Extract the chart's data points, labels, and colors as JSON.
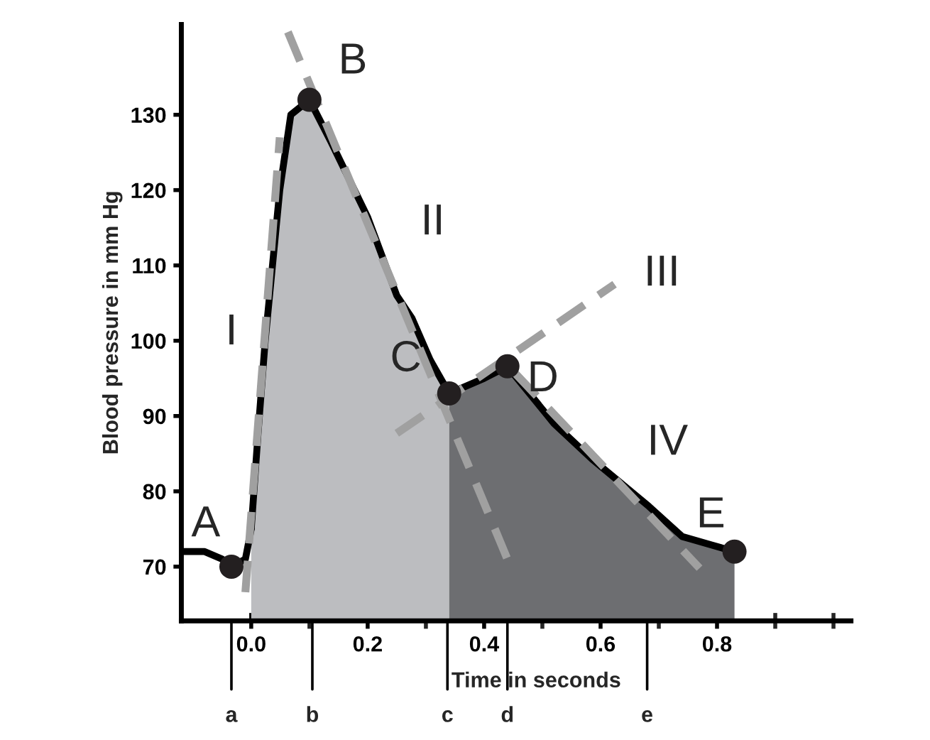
{
  "chart_data": {
    "type": "line",
    "xlabel": "Time in seconds",
    "ylabel": "Blood pressure in mm Hg",
    "xlim": [
      -0.12,
      1.03
    ],
    "ylim": [
      62.8,
      142
    ],
    "xticks": [
      {
        "value": 0.0,
        "label": "0.0"
      },
      {
        "value": 0.1,
        "label": null
      },
      {
        "value": 0.2,
        "label": "0.2"
      },
      {
        "value": 0.3,
        "label": null
      },
      {
        "value": 0.4,
        "label": "0.4"
      },
      {
        "value": 0.5,
        "label": null
      },
      {
        "value": 0.6,
        "label": "0.6"
      },
      {
        "value": 0.7,
        "label": null
      },
      {
        "value": 0.8,
        "label": "0.8"
      },
      {
        "value": 0.9,
        "label": null
      },
      {
        "value": 1.0,
        "label": null
      }
    ],
    "yticks": [
      70,
      80,
      90,
      100,
      110,
      120,
      130
    ],
    "grid": false,
    "series": [
      {
        "type": "area",
        "color": "#bcbdc0",
        "x": [
          0.0,
          0.012,
          0.024,
          0.049,
          0.068,
          0.1,
          0.137,
          0.2,
          0.25,
          0.276,
          0.307,
          0.34
        ],
        "values": [
          75,
          88,
          100,
          120,
          130,
          132,
          126.4,
          116.4,
          106,
          103,
          97.5,
          93
        ]
      },
      {
        "type": "area",
        "color": "#6d6e71",
        "x": [
          0.34,
          0.4,
          0.44,
          0.52,
          0.585,
          0.683,
          0.74,
          0.83
        ],
        "values": [
          93,
          95,
          96.6,
          89,
          84.3,
          78,
          74,
          72
        ]
      },
      {
        "type": "line",
        "color": "#000000",
        "line_style": "solid",
        "marker": "none",
        "x": [
          -0.12,
          -0.08,
          -0.05,
          -0.034,
          -0.01,
          0.0
        ],
        "values": [
          72,
          72,
          71,
          70,
          71,
          75
        ]
      },
      {
        "type": "line",
        "color": "#a0a0a0",
        "line_style": "dashed",
        "marker": "none",
        "x": [
          -0.01,
          0.049
        ],
        "values": [
          66.6,
          127
        ]
      },
      {
        "type": "line",
        "color": "#a0a0a0",
        "line_style": "dashed",
        "marker": "none",
        "x": [
          0.063,
          0.44
        ],
        "values": [
          141,
          71
        ]
      },
      {
        "type": "line",
        "color": "#a0a0a0",
        "line_style": "dashed",
        "marker": "none",
        "x": [
          0.25,
          0.624
        ],
        "values": [
          87.7,
          107.5
        ]
      },
      {
        "type": "line",
        "color": "#a0a0a0",
        "line_style": "dashed",
        "marker": "none",
        "x": [
          0.453,
          0.77
        ],
        "values": [
          95.7,
          69.8
        ]
      },
      {
        "type": "scatter",
        "color": "#231f20",
        "marker": "circle",
        "x": [
          -0.034,
          0.1,
          0.34,
          0.44,
          0.83
        ],
        "values": [
          70,
          132,
          93,
          96.6,
          72
        ]
      }
    ],
    "annotations": [
      {
        "text": "A",
        "x": -0.034,
        "y": 70
      },
      {
        "text": "B",
        "x": 0.1,
        "y": 132
      },
      {
        "text": "C",
        "x": 0.34,
        "y": 93
      },
      {
        "text": "D",
        "x": 0.44,
        "y": 96.6
      },
      {
        "text": "E",
        "x": 0.83,
        "y": 72
      },
      {
        "text": "I",
        "x": 0.0236,
        "y": 101
      },
      {
        "text": "II",
        "x": 0.2,
        "y": 115.6
      },
      {
        "text": "III",
        "x": 0.624,
        "y": 107.5
      },
      {
        "text": "IV",
        "x": 0.715,
        "y": 74.3
      },
      {
        "text": "a",
        "x": -0.034
      },
      {
        "text": "b",
        "x": 0.105
      },
      {
        "text": "c",
        "x": 0.337
      },
      {
        "text": "d",
        "x": 0.44
      },
      {
        "text": "e",
        "x": 0.68
      }
    ]
  }
}
